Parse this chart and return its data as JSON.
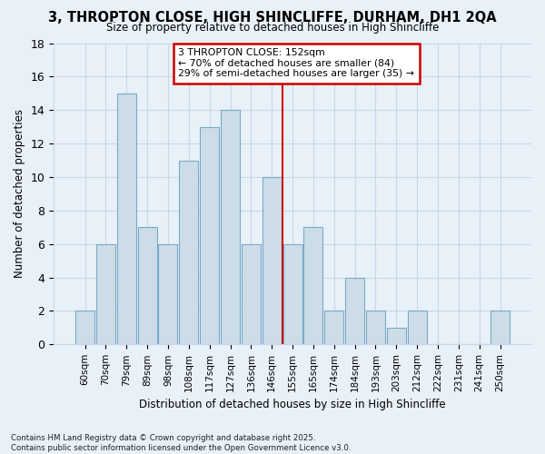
{
  "title": "3, THROPTON CLOSE, HIGH SHINCLIFFE, DURHAM, DH1 2QA",
  "subtitle": "Size of property relative to detached houses in High Shincliffe",
  "xlabel": "Distribution of detached houses by size in High Shincliffe",
  "ylabel": "Number of detached properties",
  "bar_labels": [
    "60sqm",
    "70sqm",
    "79sqm",
    "89sqm",
    "98sqm",
    "108sqm",
    "117sqm",
    "127sqm",
    "136sqm",
    "146sqm",
    "155sqm",
    "165sqm",
    "174sqm",
    "184sqm",
    "193sqm",
    "203sqm",
    "212sqm",
    "222sqm",
    "231sqm",
    "241sqm",
    "250sqm"
  ],
  "bar_values": [
    2,
    6,
    15,
    7,
    6,
    11,
    13,
    14,
    6,
    10,
    6,
    7,
    2,
    4,
    2,
    1,
    2,
    0,
    0,
    0,
    2
  ],
  "bar_color": "#ccdde8",
  "bar_edge_color": "#7aaac8",
  "vline_index": 10,
  "vline_color": "#cc0000",
  "annotation_line1": "3 THROPTON CLOSE: 152sqm",
  "annotation_line2": "← 70% of detached houses are smaller (84)",
  "annotation_line3": "29% of semi-detached houses are larger (35) →",
  "annotation_box_color": "#ffffff",
  "annotation_box_edge": "#cc0000",
  "ylim": [
    0,
    18
  ],
  "yticks": [
    0,
    2,
    4,
    6,
    8,
    10,
    12,
    14,
    16,
    18
  ],
  "grid_color": "#c8d8e8",
  "background_color": "#e8f0f8",
  "footer_line1": "Contains HM Land Registry data © Crown copyright and database right 2025.",
  "footer_line2": "Contains public sector information licensed under the Open Government Licence v3.0."
}
